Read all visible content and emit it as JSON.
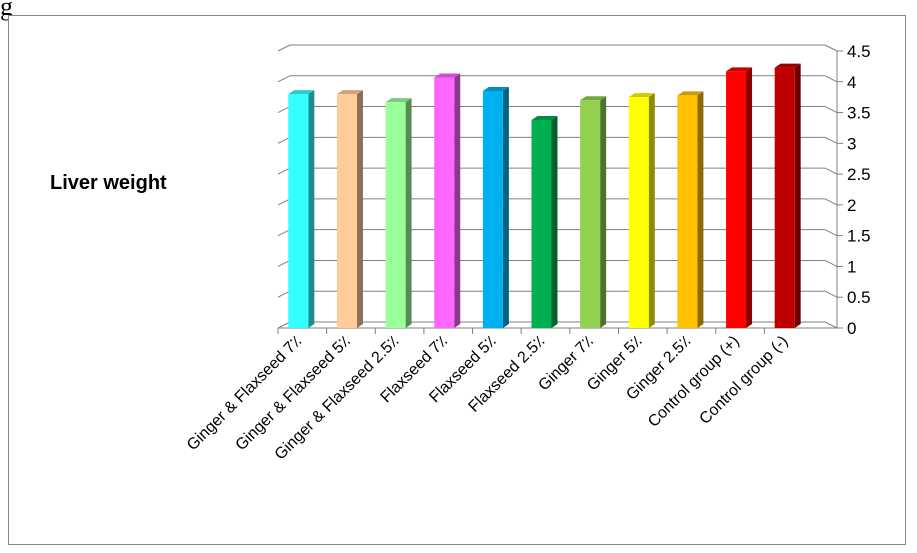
{
  "header_fragment": "g",
  "chart_data": {
    "type": "bar",
    "title": "Liver weight",
    "xlabel": "",
    "ylabel": "",
    "ylim": [
      0,
      4.5
    ],
    "yticks": [
      "0",
      "0.5",
      "1",
      "1.5",
      "2",
      "2.5",
      "3",
      "3.5",
      "4",
      "4.5"
    ],
    "grid": true,
    "categories": [
      "Ginger & Flaxseed 7٪",
      "Ginger & Flaxseed 5٪",
      "Ginger & Flaxseed 2.5٪",
      "Flaxseed 7٪",
      "Flaxseed 5٪",
      "Flaxseed 2.5٪",
      "Ginger 7٪",
      "Ginger 5٪",
      "Ginger 2.5٪",
      "Control group (+)",
      "Control group (-)"
    ],
    "values": [
      3.8,
      3.8,
      3.67,
      4.07,
      3.85,
      3.38,
      3.7,
      3.75,
      3.78,
      4.17,
      4.23
    ],
    "colors": [
      "#33FFFF",
      "#FFCC99",
      "#99FF99",
      "#FF66FF",
      "#00B0F0",
      "#00B050",
      "#92D050",
      "#FFFF00",
      "#FFC000",
      "#FF0000",
      "#C00000"
    ]
  }
}
